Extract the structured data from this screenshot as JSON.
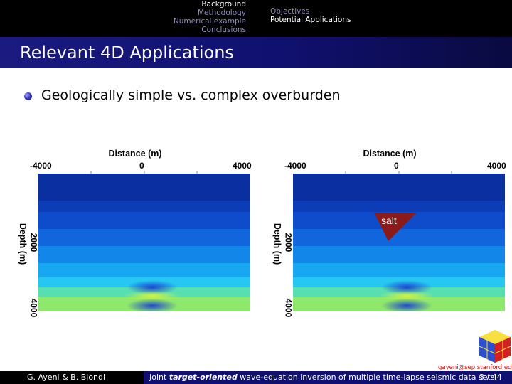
{
  "nav": {
    "sections": [
      "Background",
      "Methodology",
      "Numerical example",
      "Conclusions"
    ],
    "subsections": [
      "Objectives",
      "Potential Applications"
    ]
  },
  "slide": {
    "title": "Relevant 4D Applications",
    "bullet": "Geologically simple vs. complex overburden"
  },
  "figure": {
    "x_axis_title": "Distance (m)",
    "x_ticks": [
      "-4000",
      "0",
      "4000"
    ],
    "y_axis_title": "Depth (m)",
    "y_ticks": [
      "2000",
      "4000"
    ],
    "salt_label": "salt",
    "layer_colors": [
      "#0a2fa0",
      "#0c3cb6",
      "#0e4ccc",
      "#1166dd",
      "#1386ea",
      "#18a8f2",
      "#26c7f2",
      "#58dfb0",
      "#8ee86c"
    ]
  },
  "footer": {
    "authors": "G. Ayeni & B. Biondi",
    "talk_title_pre": "Joint ",
    "talk_title_em": "target-oriented",
    "talk_title_post": " wave-equation inversion of multiple time-lapse seismic data sets",
    "page": "3 / 44",
    "email": "gayeni@sep.stanford.edu"
  }
}
